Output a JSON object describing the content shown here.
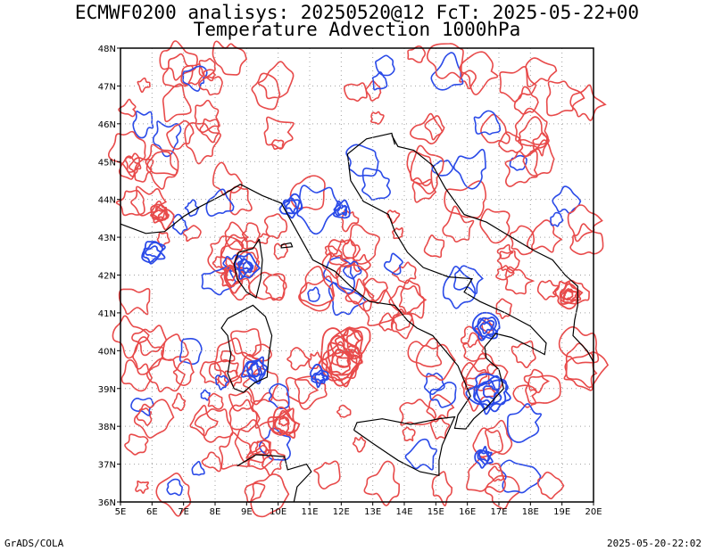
{
  "header": {
    "line1": "ECMWF0200 analisys: 20250520@12 FcT: 2025-05-22+00",
    "line2": "Temperature Advection 1000hPa"
  },
  "footer": {
    "left": "GrADS/COLA",
    "right": "2025-05-20-22:02"
  },
  "map": {
    "lon_range": [
      5,
      20
    ],
    "lat_range": [
      36,
      48
    ],
    "lon_labels": [
      "5E",
      "6E",
      "7E",
      "8E",
      "9E",
      "10E",
      "11E",
      "12E",
      "13E",
      "14E",
      "15E",
      "16E",
      "17E",
      "18E",
      "19E",
      "20E"
    ],
    "lat_labels": [
      "36N",
      "37N",
      "38N",
      "39N",
      "40N",
      "41N",
      "42N",
      "43N",
      "44N",
      "45N",
      "46N",
      "47N",
      "48N"
    ],
    "grid": true,
    "colors": {
      "warm_advection": "#e84a4a",
      "cold_advection": "#2a4ae8",
      "coastline": "#000000",
      "grid": "#a0a0a0"
    }
  }
}
